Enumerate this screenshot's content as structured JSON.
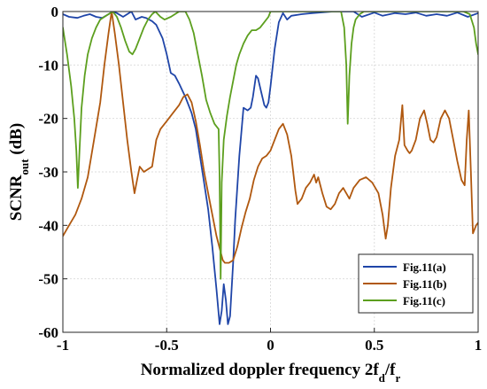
{
  "chart_data": {
    "type": "line",
    "xlabel_main": "Normalized doppler frequency 2f",
    "xlabel_sub1": "d",
    "xlabel_mid": "/f",
    "xlabel_sub2": "r",
    "ylabel_main": "SCNR",
    "ylabel_sub": "out",
    "ylabel_unit": " (dB)",
    "xlim": [
      -1,
      1
    ],
    "ylim": [
      -60,
      0
    ],
    "xticks": [
      -1,
      -0.5,
      0,
      0.5,
      1
    ],
    "xtick_labels": [
      "-1",
      "-0.5",
      "0",
      "0.5",
      "1"
    ],
    "yticks": [
      0,
      -10,
      -20,
      -30,
      -40,
      -50,
      -60
    ],
    "ytick_labels": [
      "0",
      "-10",
      "-20",
      "-30",
      "-40",
      "-50",
      "-60"
    ],
    "grid": true,
    "legend_position": "bottom-right",
    "series": [
      {
        "name": "Fig.11(a)",
        "color": "#1f45a8",
        "points": [
          [
            -1.0,
            -0.5
          ],
          [
            -0.97,
            -1.0
          ],
          [
            -0.93,
            -1.2
          ],
          [
            -0.9,
            -0.8
          ],
          [
            -0.87,
            -0.5
          ],
          [
            -0.84,
            -1.0
          ],
          [
            -0.81,
            -1.2
          ],
          [
            -0.78,
            -0.5
          ],
          [
            -0.76,
            0
          ],
          [
            -0.74,
            -0.3
          ],
          [
            -0.71,
            -1.0
          ],
          [
            -0.69,
            -0.5
          ],
          [
            -0.67,
            0
          ],
          [
            -0.65,
            -1.5
          ],
          [
            -0.62,
            -1.0
          ],
          [
            -0.6,
            -1.2
          ],
          [
            -0.57,
            -1.8
          ],
          [
            -0.55,
            -2.5
          ],
          [
            -0.52,
            -5.0
          ],
          [
            -0.5,
            -8.0
          ],
          [
            -0.48,
            -11.5
          ],
          [
            -0.46,
            -12.0
          ],
          [
            -0.44,
            -13.5
          ],
          [
            -0.41,
            -16.0
          ],
          [
            -0.38,
            -19.0
          ],
          [
            -0.36,
            -22.0
          ],
          [
            -0.34,
            -27.0
          ],
          [
            -0.32,
            -32.0
          ],
          [
            -0.3,
            -37.0
          ],
          [
            -0.28,
            -44.0
          ],
          [
            -0.26,
            -52.0
          ],
          [
            -0.245,
            -58.5
          ],
          [
            -0.235,
            -56.0
          ],
          [
            -0.225,
            -51.0
          ],
          [
            -0.215,
            -54.0
          ],
          [
            -0.205,
            -58.5
          ],
          [
            -0.195,
            -57.0
          ],
          [
            -0.18,
            -47.0
          ],
          [
            -0.17,
            -39.0
          ],
          [
            -0.15,
            -27.0
          ],
          [
            -0.13,
            -18.0
          ],
          [
            -0.11,
            -18.5
          ],
          [
            -0.095,
            -18.0
          ],
          [
            -0.085,
            -16.0
          ],
          [
            -0.07,
            -12.0
          ],
          [
            -0.06,
            -12.5
          ],
          [
            -0.045,
            -15.0
          ],
          [
            -0.03,
            -17.5
          ],
          [
            -0.02,
            -18.0
          ],
          [
            -0.01,
            -17.0
          ],
          [
            0.0,
            -14.0
          ],
          [
            0.02,
            -7.0
          ],
          [
            0.04,
            -2.0
          ],
          [
            0.06,
            -0.3
          ],
          [
            0.08,
            -1.5
          ],
          [
            0.1,
            -0.8
          ],
          [
            0.15,
            -0.5
          ],
          [
            0.2,
            -0.3
          ],
          [
            0.3,
            0
          ],
          [
            0.4,
            0
          ],
          [
            0.44,
            -1.0
          ],
          [
            0.5,
            -0.2
          ],
          [
            0.54,
            -0.8
          ],
          [
            0.6,
            -0.3
          ],
          [
            0.65,
            -0.5
          ],
          [
            0.7,
            -0.2
          ],
          [
            0.75,
            -0.8
          ],
          [
            0.8,
            -0.5
          ],
          [
            0.85,
            -0.8
          ],
          [
            0.9,
            -0.2
          ],
          [
            0.95,
            -1.0
          ],
          [
            1.0,
            -0.3
          ]
        ]
      },
      {
        "name": "Fig.11(b)",
        "color": "#b0580f",
        "points": [
          [
            -1.0,
            -42.0
          ],
          [
            -0.97,
            -40.0
          ],
          [
            -0.94,
            -38.0
          ],
          [
            -0.91,
            -35.0
          ],
          [
            -0.88,
            -31.0
          ],
          [
            -0.85,
            -24.0
          ],
          [
            -0.82,
            -17.0
          ],
          [
            -0.8,
            -10.0
          ],
          [
            -0.78,
            -4.0
          ],
          [
            -0.765,
            0
          ],
          [
            -0.75,
            -4.0
          ],
          [
            -0.73,
            -10.0
          ],
          [
            -0.71,
            -17.0
          ],
          [
            -0.69,
            -24.0
          ],
          [
            -0.67,
            -30.0
          ],
          [
            -0.655,
            -34.0
          ],
          [
            -0.64,
            -31.0
          ],
          [
            -0.63,
            -29.0
          ],
          [
            -0.61,
            -30.0
          ],
          [
            -0.59,
            -29.5
          ],
          [
            -0.57,
            -29.0
          ],
          [
            -0.55,
            -24.0
          ],
          [
            -0.53,
            -22.0
          ],
          [
            -0.5,
            -20.5
          ],
          [
            -0.47,
            -19.0
          ],
          [
            -0.44,
            -17.5
          ],
          [
            -0.42,
            -16.0
          ],
          [
            -0.4,
            -15.5
          ],
          [
            -0.38,
            -17.0
          ],
          [
            -0.36,
            -20.5
          ],
          [
            -0.34,
            -25.0
          ],
          [
            -0.32,
            -30.0
          ],
          [
            -0.3,
            -34.0
          ],
          [
            -0.28,
            -38.0
          ],
          [
            -0.26,
            -42.0
          ],
          [
            -0.24,
            -45.0
          ],
          [
            -0.23,
            -46.5
          ],
          [
            -0.22,
            -47.0
          ],
          [
            -0.2,
            -47.0
          ],
          [
            -0.18,
            -46.5
          ],
          [
            -0.16,
            -44.0
          ],
          [
            -0.14,
            -40.5
          ],
          [
            -0.12,
            -37.5
          ],
          [
            -0.1,
            -35.0
          ],
          [
            -0.08,
            -31.5
          ],
          [
            -0.06,
            -29.0
          ],
          [
            -0.04,
            -27.5
          ],
          [
            -0.02,
            -27.0
          ],
          [
            0.0,
            -26.0
          ],
          [
            0.02,
            -24.0
          ],
          [
            0.04,
            -22.0
          ],
          [
            0.06,
            -21.0
          ],
          [
            0.08,
            -23.0
          ],
          [
            0.1,
            -27.0
          ],
          [
            0.12,
            -33.5
          ],
          [
            0.13,
            -36.0
          ],
          [
            0.15,
            -35.0
          ],
          [
            0.17,
            -33.0
          ],
          [
            0.19,
            -32.0
          ],
          [
            0.21,
            -30.5
          ],
          [
            0.22,
            -32.0
          ],
          [
            0.23,
            -31.0
          ],
          [
            0.25,
            -34.0
          ],
          [
            0.27,
            -36.5
          ],
          [
            0.29,
            -37.0
          ],
          [
            0.31,
            -36.0
          ],
          [
            0.33,
            -34.0
          ],
          [
            0.35,
            -33.0
          ],
          [
            0.38,
            -35.0
          ],
          [
            0.4,
            -33.0
          ],
          [
            0.43,
            -31.5
          ],
          [
            0.46,
            -31.0
          ],
          [
            0.49,
            -32.0
          ],
          [
            0.52,
            -34.0
          ],
          [
            0.54,
            -38.0
          ],
          [
            0.555,
            -42.5
          ],
          [
            0.565,
            -40.0
          ],
          [
            0.58,
            -33.0
          ],
          [
            0.6,
            -27.0
          ],
          [
            0.62,
            -24.0
          ],
          [
            0.635,
            -17.5
          ],
          [
            0.645,
            -25.0
          ],
          [
            0.66,
            -26.0
          ],
          [
            0.67,
            -26.5
          ],
          [
            0.68,
            -26.0
          ],
          [
            0.7,
            -24.0
          ],
          [
            0.72,
            -20.0
          ],
          [
            0.74,
            -18.5
          ],
          [
            0.755,
            -21.0
          ],
          [
            0.77,
            -24.0
          ],
          [
            0.785,
            -24.5
          ],
          [
            0.8,
            -23.5
          ],
          [
            0.82,
            -20.0
          ],
          [
            0.84,
            -18.5
          ],
          [
            0.86,
            -20.0
          ],
          [
            0.88,
            -24.0
          ],
          [
            0.9,
            -28.0
          ],
          [
            0.92,
            -31.5
          ],
          [
            0.935,
            -32.5
          ],
          [
            0.945,
            -24.0
          ],
          [
            0.955,
            -18.5
          ],
          [
            0.965,
            -30.0
          ],
          [
            0.975,
            -41.5
          ],
          [
            0.99,
            -40.0
          ],
          [
            1.0,
            -39.5
          ]
        ]
      },
      {
        "name": "Fig.11(c)",
        "color": "#5c9f1e",
        "points": [
          [
            -1.0,
            -3.0
          ],
          [
            -0.98,
            -8.0
          ],
          [
            -0.96,
            -14.0
          ],
          [
            -0.945,
            -20.0
          ],
          [
            -0.935,
            -26.0
          ],
          [
            -0.928,
            -33.0
          ],
          [
            -0.92,
            -26.0
          ],
          [
            -0.91,
            -18.0
          ],
          [
            -0.895,
            -12.0
          ],
          [
            -0.88,
            -8.0
          ],
          [
            -0.86,
            -5.0
          ],
          [
            -0.84,
            -3.0
          ],
          [
            -0.82,
            -1.5
          ],
          [
            -0.8,
            -1.0
          ],
          [
            -0.78,
            -0.5
          ],
          [
            -0.76,
            0
          ],
          [
            -0.74,
            -1.0
          ],
          [
            -0.72,
            -3.0
          ],
          [
            -0.7,
            -5.5
          ],
          [
            -0.68,
            -7.5
          ],
          [
            -0.665,
            -8.0
          ],
          [
            -0.65,
            -7.0
          ],
          [
            -0.63,
            -5.0
          ],
          [
            -0.61,
            -3.0
          ],
          [
            -0.59,
            -1.5
          ],
          [
            -0.57,
            -0.5
          ],
          [
            -0.555,
            0
          ],
          [
            -0.53,
            -1.0
          ],
          [
            -0.51,
            -1.5
          ],
          [
            -0.48,
            -1.0
          ],
          [
            -0.46,
            -0.5
          ],
          [
            -0.44,
            0
          ],
          [
            -0.41,
            0
          ],
          [
            -0.39,
            -1.5
          ],
          [
            -0.37,
            -4.0
          ],
          [
            -0.35,
            -8.0
          ],
          [
            -0.33,
            -12.0
          ],
          [
            -0.31,
            -16.5
          ],
          [
            -0.29,
            -19.0
          ],
          [
            -0.27,
            -21.0
          ],
          [
            -0.26,
            -21.5
          ],
          [
            -0.25,
            -22.0
          ],
          [
            -0.245,
            -31.0
          ],
          [
            -0.24,
            -50.0
          ],
          [
            -0.235,
            -32.0
          ],
          [
            -0.225,
            -24.0
          ],
          [
            -0.21,
            -19.5
          ],
          [
            -0.195,
            -16.0
          ],
          [
            -0.18,
            -13.0
          ],
          [
            -0.165,
            -10.0
          ],
          [
            -0.15,
            -8.0
          ],
          [
            -0.13,
            -6.0
          ],
          [
            -0.11,
            -4.5
          ],
          [
            -0.09,
            -3.5
          ],
          [
            -0.07,
            -3.5
          ],
          [
            -0.05,
            -3.0
          ],
          [
            -0.03,
            -2.0
          ],
          [
            -0.01,
            -1.0
          ],
          [
            0.0,
            0
          ],
          [
            0.02,
            0
          ],
          [
            0.1,
            0
          ],
          [
            0.2,
            0
          ],
          [
            0.3,
            0
          ],
          [
            0.34,
            0
          ],
          [
            0.355,
            -3.0
          ],
          [
            0.365,
            -10.0
          ],
          [
            0.372,
            -21.0
          ],
          [
            0.38,
            -12.0
          ],
          [
            0.39,
            -6.0
          ],
          [
            0.4,
            -3.0
          ],
          [
            0.41,
            -1.5
          ],
          [
            0.43,
            -0.5
          ],
          [
            0.45,
            0
          ],
          [
            0.55,
            0
          ],
          [
            0.65,
            0
          ],
          [
            0.75,
            0
          ],
          [
            0.85,
            0
          ],
          [
            0.93,
            0
          ],
          [
            0.96,
            -0.5
          ],
          [
            0.98,
            -3.0
          ],
          [
            0.99,
            -6.0
          ],
          [
            1.0,
            -8.0
          ]
        ]
      }
    ]
  }
}
